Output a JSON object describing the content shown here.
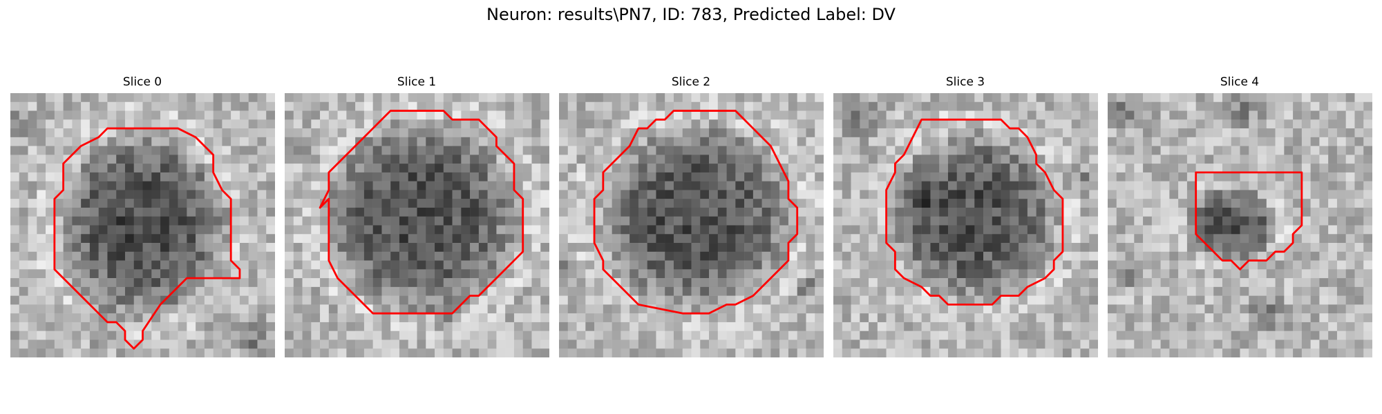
{
  "figure": {
    "title": "Neuron: results\\PN7, ID: 783, Predicted Label: DV"
  },
  "panels": [
    {
      "title": "Slice 0"
    },
    {
      "title": "Slice 1"
    },
    {
      "title": "Slice 2"
    },
    {
      "title": "Slice 3"
    },
    {
      "title": "Slice 4"
    }
  ],
  "colors": {
    "contour": "#ff0000",
    "background": "#ffffff",
    "colormap": "grayscale"
  }
}
